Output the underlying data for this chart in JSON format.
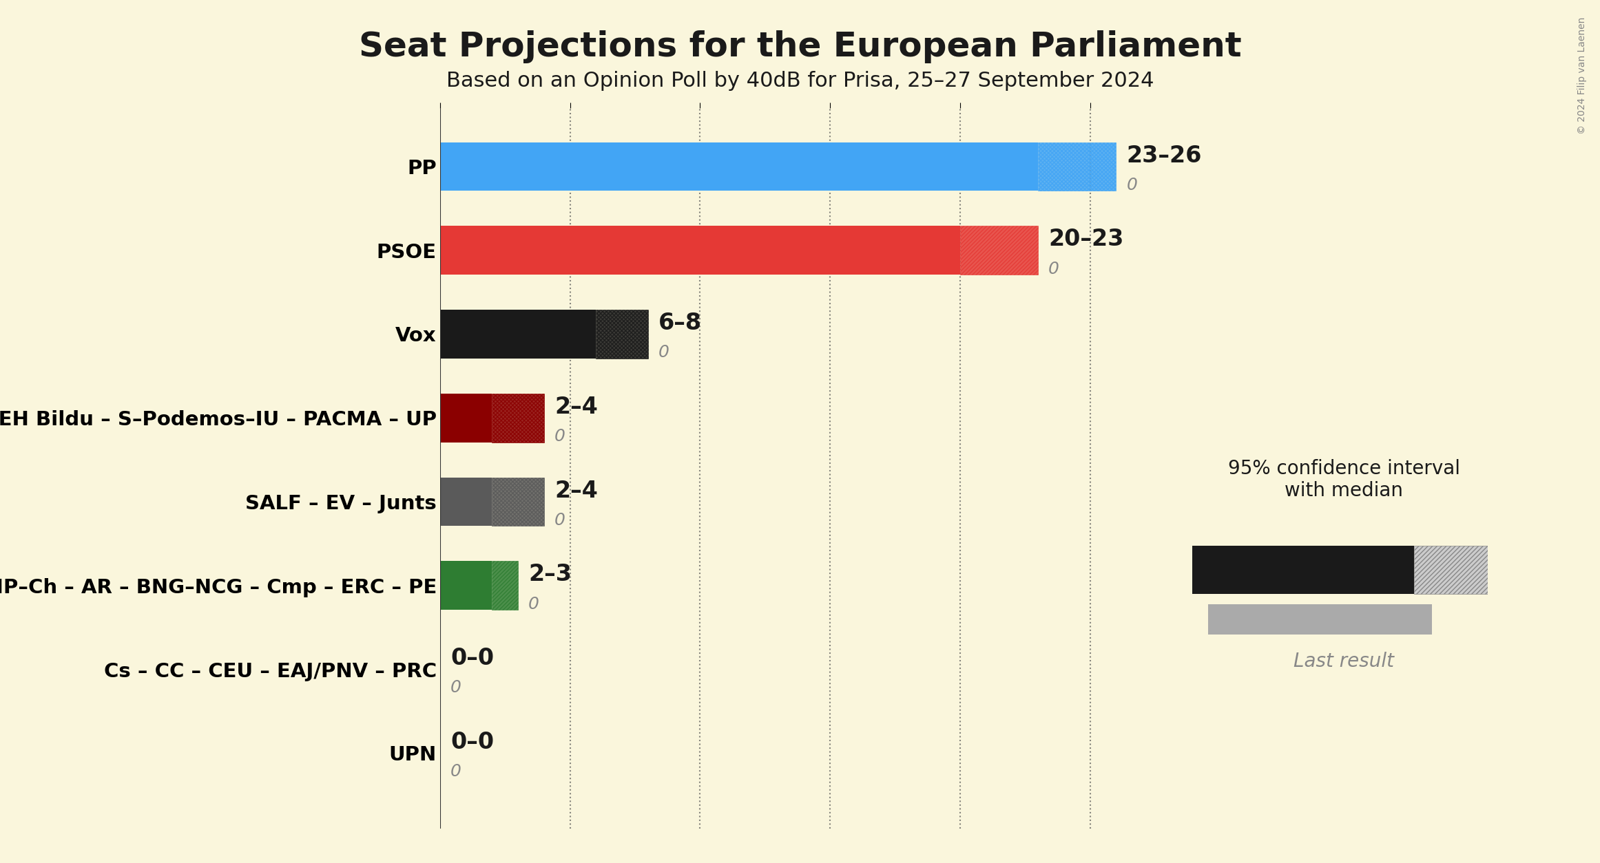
{
  "title": "Seat Projections for the European Parliament",
  "subtitle": "Based on an Opinion Poll by 40dB for Prisa, 25–27 September 2024",
  "background_color": "#FAF6DC",
  "parties": [
    "PP",
    "PSOE",
    "Vox",
    "Podemos – S–IU – CUP – EH Bildu – S–Podemos–IU – PACMA – UP",
    "SALF – EV – Junts",
    "S–CC–MC–MP–Ch – AR – BNG–NCG – Cmp – ERC – PE",
    "Cs – CC – CEU – EAJ/PNV – PRC",
    "UPN"
  ],
  "median": [
    23,
    20,
    6,
    2,
    2,
    2,
    0,
    0
  ],
  "high": [
    26,
    23,
    8,
    4,
    4,
    3,
    0,
    0
  ],
  "last_result": [
    0,
    0,
    0,
    0,
    0,
    0,
    0,
    0
  ],
  "labels": [
    "23–26",
    "20–23",
    "6–8",
    "2–4",
    "2–4",
    "2–3",
    "0–0",
    "0–0"
  ],
  "colors": [
    "#42A5F5",
    "#E53935",
    "#1a1a1a",
    "#8B0000",
    "#5a5a5a",
    "#2E7D32",
    "#1a1a1a",
    "#1a1a1a"
  ],
  "hatch_types": [
    "xx",
    "//",
    "xx",
    "xx",
    "xx",
    "//",
    "xx",
    "xx"
  ],
  "xlim": [
    0,
    28
  ],
  "tick_positions": [
    0,
    5,
    10,
    15,
    20,
    25
  ],
  "copyright": "© 2024 Filip van Laenen",
  "legend_label": "95% confidence interval\nwith median",
  "last_result_label": "Last result"
}
